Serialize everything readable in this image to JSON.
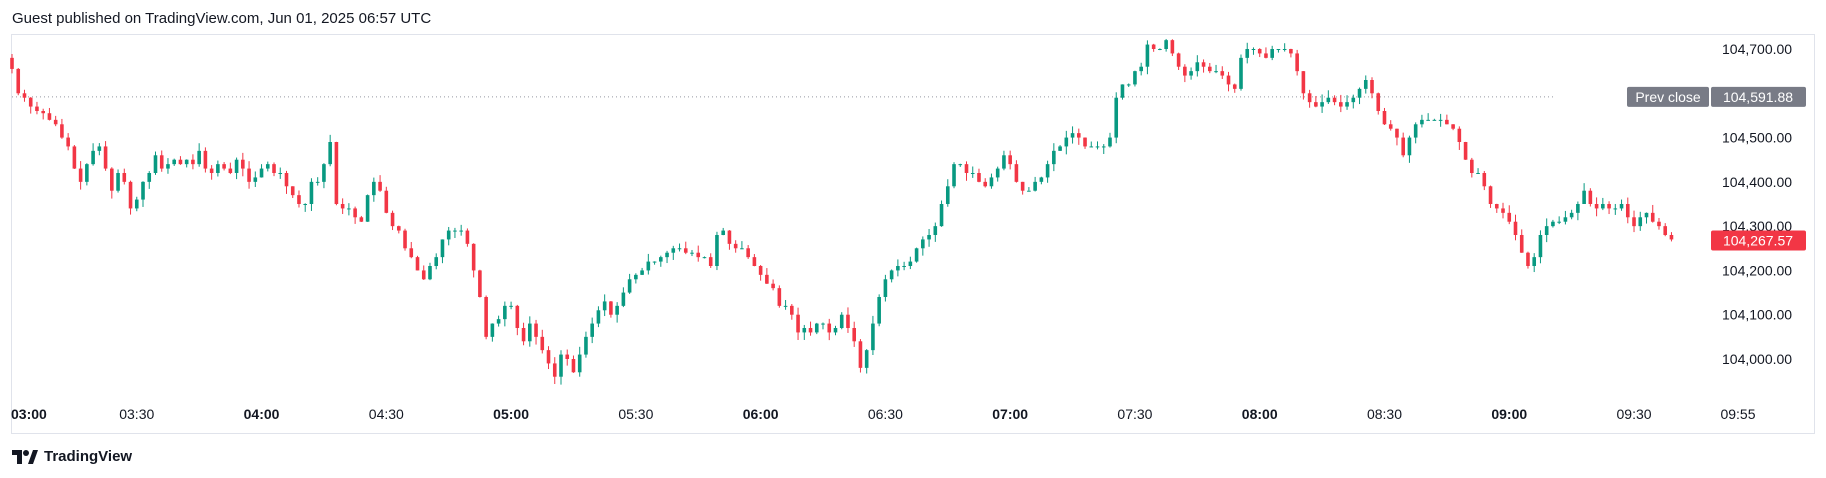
{
  "header": {
    "title": "Guest published on TradingView.com, Jun 01, 2025 06:57 UTC"
  },
  "footer": {
    "brand": "TradingView"
  },
  "colors": {
    "up": "#089981",
    "down": "#f23645",
    "grid_text": "#131722",
    "prev_close_bg": "#787b86"
  },
  "chart_data": {
    "type": "candlestick",
    "title": "",
    "ylim": [
      103930,
      104740
    ],
    "y_ticks": [
      {
        "value": 104700,
        "label": "104,700.00"
      },
      {
        "value": 104500,
        "label": "104,500.00"
      },
      {
        "value": 104400,
        "label": "104,400.00"
      },
      {
        "value": 104300,
        "label": "104,300.00"
      },
      {
        "value": 104200,
        "label": "104,200.00"
      },
      {
        "value": 104100,
        "label": "104,100.00"
      },
      {
        "value": 104000,
        "label": "104,000.00"
      }
    ],
    "x_ticks": [
      {
        "minute": 0,
        "label": "03:00",
        "bold": true
      },
      {
        "minute": 30,
        "label": "03:30",
        "bold": false
      },
      {
        "minute": 60,
        "label": "04:00",
        "bold": true
      },
      {
        "minute": 90,
        "label": "04:30",
        "bold": false
      },
      {
        "minute": 120,
        "label": "05:00",
        "bold": true
      },
      {
        "minute": 150,
        "label": "05:30",
        "bold": false
      },
      {
        "minute": 180,
        "label": "06:00",
        "bold": true
      },
      {
        "minute": 210,
        "label": "06:30",
        "bold": false
      },
      {
        "minute": 240,
        "label": "07:00",
        "bold": true
      },
      {
        "minute": 270,
        "label": "07:30",
        "bold": false
      },
      {
        "minute": 300,
        "label": "08:00",
        "bold": true
      },
      {
        "minute": 330,
        "label": "08:30",
        "bold": false
      },
      {
        "minute": 360,
        "label": "09:00",
        "bold": true
      },
      {
        "minute": 390,
        "label": "09:30",
        "bold": false
      },
      {
        "minute": 415,
        "label": "09:55",
        "bold": false
      }
    ],
    "prev_close": {
      "label": "Prev close",
      "value": 104591.88,
      "value_label": "104,591.88"
    },
    "last_price": {
      "value": 104267.57,
      "value_label": "104,267.57"
    },
    "closes": [
      104655,
      104600,
      104590,
      104570,
      104560,
      104555,
      104540,
      104530,
      104500,
      104480,
      104430,
      104400,
      104440,
      104470,
      104480,
      104430,
      104380,
      104420,
      104400,
      104340,
      104360,
      104400,
      104420,
      104460,
      104430,
      104440,
      104450,
      104440,
      104450,
      104440,
      104470,
      104430,
      104420,
      104440,
      104430,
      104420,
      104450,
      104430,
      104400,
      104410,
      104430,
      104440,
      104420,
      104420,
      104390,
      104370,
      104350,
      104350,
      104400,
      104400,
      104440,
      104490,
      104350,
      104340,
      104340,
      104320,
      104310,
      104370,
      104400,
      104380,
      104330,
      104300,
      104290,
      104250,
      104230,
      104200,
      104180,
      104210,
      104230,
      104270,
      104290,
      104290,
      104290,
      104260,
      104200,
      104140,
      104050,
      104080,
      104090,
      104120,
      104120,
      104070,
      104040,
      104080,
      104050,
      104020,
      103990,
      103960,
      104010,
      104000,
      103970,
      104010,
      104050,
      104080,
      104110,
      104130,
      104100,
      104120,
      104150,
      104180,
      104190,
      104200,
      104220,
      104220,
      104230,
      104240,
      104250,
      104250,
      104240,
      104240,
      104230,
      104230,
      104210,
      104280,
      104290,
      104260,
      104250,
      104250,
      104230,
      104210,
      104190,
      104170,
      104160,
      104120,
      104120,
      104100,
      104060,
      104070,
      104060,
      104080,
      104080,
      104060,
      104070,
      104100,
      104070,
      104040,
      103980,
      104020,
      104080,
      104140,
      104180,
      104200,
      104210,
      104210,
      104220,
      104250,
      104270,
      104280,
      104300,
      104350,
      104390,
      104440,
      104440,
      104420,
      104420,
      104400,
      104390,
      104410,
      104430,
      104460,
      104440,
      104400,
      104380,
      104380,
      104400,
      104410,
      104440,
      104470,
      104480,
      104500,
      104510,
      104500,
      104480,
      104480,
      104480,
      104480,
      104500,
      104590,
      104620,
      104620,
      104650,
      104660,
      104710,
      104700,
      104700,
      104720,
      104690,
      104660,
      104640,
      104650,
      104670,
      104660,
      104650,
      104650,
      104640,
      104620,
      104610,
      104680,
      104700,
      104700,
      104690,
      104680,
      104700,
      104700,
      104700,
      104690,
      104650,
      104600,
      104580,
      104570,
      104580,
      104590,
      104580,
      104570,
      104580,
      104590,
      104610,
      104630,
      104600,
      104560,
      104530,
      104520,
      104500,
      104460,
      104500,
      104530,
      104540,
      104540,
      104540,
      104540,
      104530,
      104520,
      104490,
      104450,
      104420,
      104420,
      104390,
      104350,
      104340,
      104330,
      104310,
      104280,
      104240,
      104210,
      104230,
      104280,
      104300,
      104310,
      104310,
      104320,
      104330,
      104350,
      104380,
      104350,
      104340,
      104350,
      104340,
      104340,
      104350,
      104320,
      104300,
      104320,
      104330,
      104310,
      104300,
      104280,
      104270
    ]
  }
}
